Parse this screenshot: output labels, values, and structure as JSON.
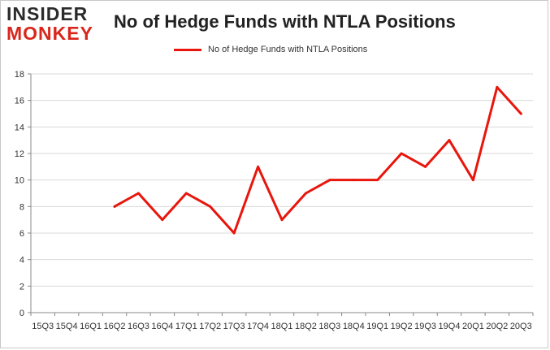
{
  "logo": {
    "line1": "INSIDER",
    "line2": "MONKEY"
  },
  "colors": {
    "series": "#e8160c",
    "grid": "#d9d9d9",
    "axis": "#888888"
  },
  "chart_data": {
    "type": "line",
    "title": "No of Hedge Funds with NTLA Positions",
    "xlabel": "",
    "ylabel": "",
    "ylim": [
      0,
      18
    ],
    "yticks": [
      0,
      2,
      4,
      6,
      8,
      10,
      12,
      14,
      16,
      18
    ],
    "grid": true,
    "legend_position": "top-center",
    "categories": [
      "15Q3",
      "15Q4",
      "16Q1",
      "16Q2",
      "16Q3",
      "16Q4",
      "17Q1",
      "17Q2",
      "17Q3",
      "17Q4",
      "18Q1",
      "18Q2",
      "18Q3",
      "18Q4",
      "19Q1",
      "19Q2",
      "19Q3",
      "19Q4",
      "20Q1",
      "20Q2",
      "20Q3"
    ],
    "series": [
      {
        "name": "No of Hedge Funds with NTLA Positions",
        "values": [
          null,
          null,
          null,
          8,
          9,
          7,
          9,
          8,
          6,
          11,
          7,
          9,
          10,
          10,
          10,
          12,
          11,
          13,
          10,
          17,
          15
        ]
      }
    ]
  }
}
